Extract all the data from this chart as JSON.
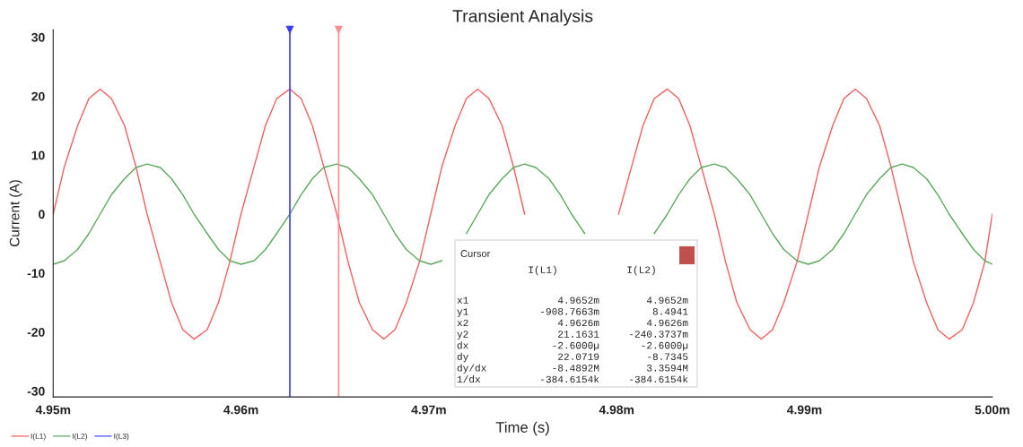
{
  "chart_data": {
    "type": "line",
    "title": "Transient Analysis",
    "xlabel": "Time (s)",
    "ylabel": "Current (A)",
    "x": [
      4.95,
      4.9506,
      4.9513,
      4.9519,
      4.9525,
      4.9531,
      4.9538,
      4.9544,
      4.955,
      4.9557,
      4.9563,
      4.9569,
      4.9575,
      4.9582,
      4.9588,
      4.9594,
      4.96,
      4.9607,
      4.9613,
      4.9619,
      4.9626,
      4.9632,
      4.9638,
      4.9644,
      4.9651,
      4.9657,
      4.9663,
      4.967,
      4.9676,
      4.9682,
      4.9688,
      4.9695,
      4.9701,
      4.9707,
      4.9714,
      4.972,
      4.9726,
      4.9732,
      4.9739,
      4.9745,
      4.9751,
      4.9757,
      4.9764,
      4.977,
      4.9776,
      4.9783,
      4.9789,
      4.9795,
      4.9801,
      4.9808,
      4.9814,
      4.982,
      4.9827,
      4.9833,
      4.9839,
      4.9845,
      4.9852,
      4.9858,
      4.9864,
      4.9871,
      4.9877,
      4.9883,
      4.9889,
      4.9896,
      4.9902,
      4.9908,
      4.9915,
      4.9921,
      4.9927,
      4.9933,
      4.994,
      4.9946,
      4.9952,
      4.9958,
      4.9965,
      4.9971,
      4.9977,
      4.9984,
      4.999,
      4.9996,
      5.0
    ],
    "series": [
      {
        "name": "I(L1)",
        "color": "#f25f5f",
        "values": [
          0,
          8.1,
          15.0,
          19.6,
          21.2,
          19.6,
          15.0,
          8.1,
          0,
          -8.1,
          -15.0,
          -19.6,
          -21.2,
          -19.6,
          -15.0,
          -8.1,
          0,
          8.1,
          15.0,
          19.6,
          21.2,
          19.6,
          15.0,
          8.1,
          0,
          -8.1,
          -15.0,
          -19.6,
          -21.2,
          -19.6,
          -15.0,
          -8.1,
          0,
          8.1,
          15.0,
          19.6,
          21.2,
          19.6,
          15.0,
          8.1,
          0,
          null,
          null,
          null,
          null,
          null,
          null,
          null,
          0,
          8.1,
          15.0,
          19.6,
          21.2,
          19.6,
          15.0,
          8.1,
          0,
          -8.1,
          -15.0,
          -19.6,
          -21.2,
          -19.6,
          -15.0,
          -8.1,
          0,
          8.1,
          15.0,
          19.6,
          21.2,
          19.6,
          15.0,
          8.1,
          0,
          -8.1,
          -15.0,
          -19.6,
          -21.2,
          -19.6,
          -15.0,
          -8.1,
          0
        ]
      },
      {
        "name": "I(L2)",
        "color": "#5fa85f",
        "values": [
          -8.5,
          -7.9,
          -6.0,
          -3.3,
          0,
          3.3,
          6.0,
          7.9,
          8.5,
          7.9,
          6.0,
          3.3,
          0,
          -3.3,
          -6.0,
          -7.9,
          -8.5,
          -7.9,
          -6.0,
          -3.3,
          0,
          3.3,
          6.0,
          7.9,
          8.5,
          7.9,
          6.0,
          3.3,
          0,
          -3.3,
          -6.0,
          -7.9,
          -8.5,
          -7.9,
          null,
          -3.3,
          0,
          3.3,
          6.0,
          7.9,
          8.5,
          7.9,
          6.0,
          3.3,
          0,
          -3.3,
          null,
          null,
          null,
          null,
          null,
          -3.3,
          0,
          3.3,
          6.0,
          7.9,
          8.5,
          7.9,
          6.0,
          3.3,
          0,
          -3.3,
          -6.0,
          -7.9,
          -8.5,
          -7.9,
          -6.0,
          -3.3,
          0,
          3.3,
          6.0,
          7.9,
          8.5,
          7.9,
          6.0,
          3.3,
          0,
          -3.3,
          -6.0,
          -7.9,
          -8.5
        ]
      },
      {
        "name": "I(L3)",
        "color": "#4a4aff",
        "values": [
          null,
          null,
          null,
          null,
          null,
          null,
          null,
          null,
          null,
          null,
          null,
          null,
          null,
          null,
          null,
          null,
          null,
          null,
          null,
          null,
          null,
          null,
          null,
          null,
          null,
          null,
          null,
          null,
          null,
          null,
          null,
          null,
          null,
          null,
          null,
          null,
          null,
          null,
          null,
          null,
          null,
          null,
          null,
          null,
          null,
          null,
          null,
          null,
          null,
          null,
          null,
          null,
          null,
          null,
          null,
          null,
          null,
          null,
          null,
          null,
          null,
          null,
          null,
          null,
          null,
          null,
          null,
          null,
          null,
          null,
          null,
          null,
          null,
          null,
          null,
          null,
          null,
          null,
          null,
          null,
          null
        ]
      }
    ],
    "xlim": [
      4.95,
      5.0
    ],
    "xticks": [
      {
        "value": 4.95,
        "label": "4.95m"
      },
      {
        "value": 4.96,
        "label": "4.96m"
      },
      {
        "value": 4.97,
        "label": "4.97m"
      },
      {
        "value": 4.98,
        "label": "4.98m"
      },
      {
        "value": 4.99,
        "label": "4.99m"
      },
      {
        "value": 5.0,
        "label": "5.00m"
      }
    ],
    "ylim": [
      -31,
      31.3
    ],
    "yticks": [
      -30,
      -20,
      -10,
      0,
      10,
      20,
      30
    ],
    "ref_lines": [
      {
        "axis": "x",
        "value": 4.9626,
        "color": "#3a3aff"
      },
      {
        "axis": "x",
        "value": 4.9652,
        "color": "#ff8c8c"
      }
    ],
    "annotations": [
      "Cursor",
      "I(L1)",
      "I(L2)",
      "x1",
      "4.9652m",
      "4.9652m",
      "y1",
      "-908.7663m",
      "8.4941",
      "x2",
      "4.9626m",
      "4.9626m",
      "y2",
      "21.1631",
      "-240.3737m",
      "dx",
      "-2.6000µ",
      "-2.6000µ",
      "dy",
      "22.0719",
      "-8.7345",
      "dy/dx",
      "-8.4892M",
      "3.3594M",
      "1/dx",
      "-384.6154k",
      "-384.6154k"
    ],
    "legend": "bottom left",
    "grid": false,
    "marker": "none",
    "line_style": "solid"
  }
}
